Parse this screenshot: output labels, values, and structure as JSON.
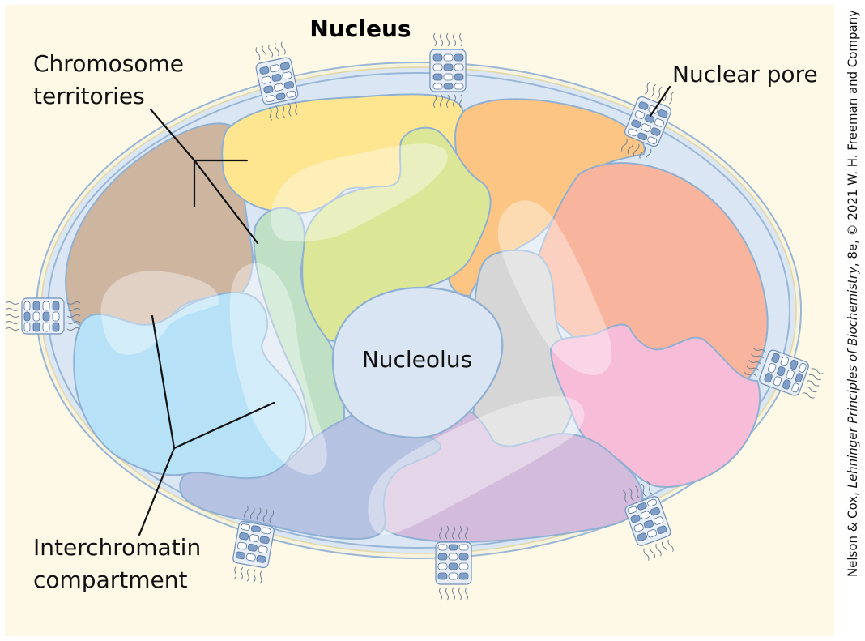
{
  "title": "Nucleus",
  "labels": {
    "chromosome_territories_line1": "Chromosome",
    "chromosome_territories_line2": "territories",
    "nuclear_pore": "Nuclear pore",
    "nucleolus": "Nucleolus",
    "interchromatin_line1": "Interchromatin",
    "interchromatin_line2": "compartment"
  },
  "credit": {
    "authors": "Nelson & Cox, ",
    "book": "Lehninger Principles of Biochemistry",
    "edition": ", 8e, © 2021 W. H. Freeman and Company"
  },
  "colors": {
    "background": "#fdf9e6",
    "nuclear_envelope": "#dae6f3",
    "envelope_outline": "#9ab6d6",
    "territory_brown": "#cdb5a0",
    "territory_yellow": "#fde68f",
    "territory_orange": "#fcc584",
    "territory_salmon": "#f8b49c",
    "territory_green": "#dce697",
    "territory_mint": "#bfe0c4",
    "territory_blue": "#b6e1f7",
    "territory_gray": "#d6d6d6",
    "territory_pink": "#f7bcd8",
    "territory_purple": "#d3bcdb",
    "territory_periwinkle": "#b6c2e2",
    "nucleolus": "#dae5f4",
    "pore": "#7f9fc8"
  },
  "icons": [
    "nuclear-pore-icon"
  ]
}
